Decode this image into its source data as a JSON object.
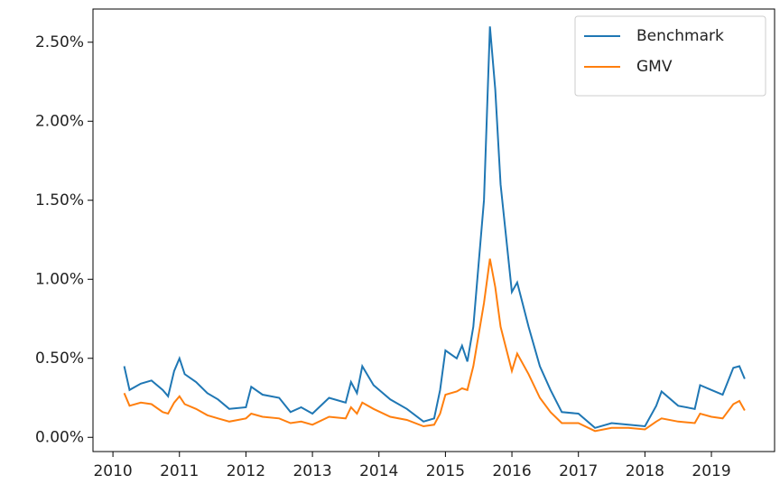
{
  "chart_data": {
    "type": "line",
    "x": [
      2010.17,
      2010.25,
      2010.42,
      2010.58,
      2010.75,
      2010.83,
      2010.92,
      2011.0,
      2011.08,
      2011.25,
      2011.42,
      2011.58,
      2011.75,
      2012.0,
      2012.08,
      2012.25,
      2012.5,
      2012.67,
      2012.83,
      2013.0,
      2013.25,
      2013.5,
      2013.58,
      2013.67,
      2013.75,
      2013.92,
      2014.17,
      2014.42,
      2014.67,
      2014.83,
      2014.92,
      2015.0,
      2015.17,
      2015.25,
      2015.33,
      2015.42,
      2015.58,
      2015.67,
      2015.75,
      2015.83,
      2016.0,
      2016.08,
      2016.25,
      2016.42,
      2016.58,
      2016.75,
      2017.0,
      2017.25,
      2017.5,
      2017.75,
      2018.0,
      2018.17,
      2018.25,
      2018.5,
      2018.75,
      2018.83,
      2019.0,
      2019.17,
      2019.33,
      2019.42,
      2019.5
    ],
    "series": [
      {
        "name": "Benchmark",
        "color": "#1f77b4",
        "values": [
          0.45,
          0.3,
          0.34,
          0.36,
          0.3,
          0.26,
          0.42,
          0.5,
          0.4,
          0.35,
          0.28,
          0.24,
          0.18,
          0.19,
          0.32,
          0.27,
          0.25,
          0.16,
          0.19,
          0.15,
          0.25,
          0.22,
          0.35,
          0.28,
          0.45,
          0.33,
          0.24,
          0.18,
          0.1,
          0.12,
          0.3,
          0.55,
          0.5,
          0.58,
          0.48,
          0.7,
          1.5,
          2.6,
          2.2,
          1.6,
          0.92,
          0.98,
          0.7,
          0.45,
          0.3,
          0.16,
          0.15,
          0.06,
          0.09,
          0.08,
          0.07,
          0.2,
          0.29,
          0.2,
          0.18,
          0.33,
          0.3,
          0.27,
          0.44,
          0.45,
          0.37
        ]
      },
      {
        "name": "GMV",
        "color": "#ff7f0e",
        "values": [
          0.28,
          0.2,
          0.22,
          0.21,
          0.16,
          0.15,
          0.22,
          0.26,
          0.21,
          0.18,
          0.14,
          0.12,
          0.1,
          0.12,
          0.15,
          0.13,
          0.12,
          0.09,
          0.1,
          0.08,
          0.13,
          0.12,
          0.19,
          0.15,
          0.22,
          0.18,
          0.13,
          0.11,
          0.07,
          0.08,
          0.15,
          0.27,
          0.29,
          0.31,
          0.3,
          0.45,
          0.85,
          1.13,
          0.95,
          0.7,
          0.42,
          0.53,
          0.4,
          0.25,
          0.16,
          0.09,
          0.09,
          0.04,
          0.06,
          0.06,
          0.05,
          0.1,
          0.12,
          0.1,
          0.09,
          0.15,
          0.13,
          0.12,
          0.21,
          0.23,
          0.17
        ]
      }
    ],
    "xlim": [
      2009.7,
      2019.95
    ],
    "xticks": [
      2010,
      2011,
      2012,
      2013,
      2014,
      2015,
      2016,
      2017,
      2018,
      2019
    ],
    "ylim": [
      -0.09,
      2.71
    ],
    "yticks": [
      {
        "value": 0,
        "label": "0.00%"
      },
      {
        "value": 0.5,
        "label": "0.50%"
      },
      {
        "value": 1.0,
        "label": "1.00%"
      },
      {
        "value": 1.5,
        "label": "1.50%"
      },
      {
        "value": 2.0,
        "label": "2.00%"
      },
      {
        "value": 2.5,
        "label": "2.50%"
      }
    ],
    "grid": false,
    "legend": "upper-right"
  }
}
